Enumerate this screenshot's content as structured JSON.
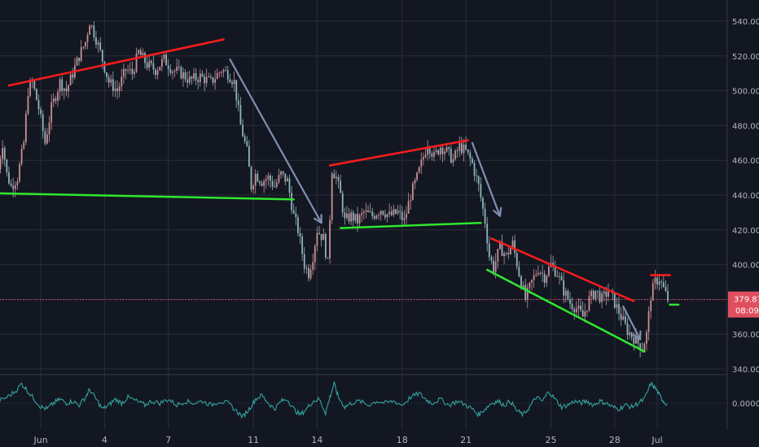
{
  "colors": {
    "background": "#131722",
    "grid": "#2a2e39",
    "axis_text": "#b2b5be",
    "candle_up": "#c98f96",
    "candle_down": "#8fb4b8",
    "resistance": "#ff1c1c",
    "support": "#2ee82e",
    "arrow": "#7f8fae",
    "price_line": "#e04f5f",
    "oscillator": "#33a3a0"
  },
  "chart_data": {
    "type": "candlestick",
    "y_axis": {
      "min": 336,
      "max": 546,
      "ticks": [
        340,
        360,
        380,
        400,
        420,
        440,
        460,
        480,
        500,
        520,
        540
      ],
      "tick_labels": [
        "340.00",
        "360.00",
        "380.00",
        "400.00",
        "420.00",
        "440.00",
        "460.00",
        "480.00",
        "500.00",
        "520.00",
        "540.00"
      ]
    },
    "x_axis": {
      "min_day": 0,
      "max_day": 30,
      "ticks": [
        {
          "day": 1,
          "label": "Jun"
        },
        {
          "day": 4,
          "label": "4"
        },
        {
          "day": 7,
          "label": "7"
        },
        {
          "day": 11,
          "label": "11"
        },
        {
          "day": 14,
          "label": "14"
        },
        {
          "day": 18,
          "label": "18"
        },
        {
          "day": 21,
          "label": "21"
        },
        {
          "day": 25,
          "label": "25"
        },
        {
          "day": 28,
          "label": "28"
        },
        {
          "day": 30,
          "label": "Jul"
        }
      ]
    },
    "price_path": [
      [
        -1.0,
        455
      ],
      [
        -0.8,
        470
      ],
      [
        -0.6,
        452
      ],
      [
        -0.4,
        445
      ],
      [
        -0.1,
        450
      ],
      [
        0.2,
        470
      ],
      [
        0.4,
        500
      ],
      [
        0.6,
        505
      ],
      [
        0.9,
        490
      ],
      [
        1.2,
        470
      ],
      [
        1.5,
        490
      ],
      [
        1.9,
        505
      ],
      [
        2.2,
        500
      ],
      [
        2.5,
        510
      ],
      [
        2.8,
        520
      ],
      [
        3.1,
        528
      ],
      [
        3.3,
        540
      ],
      [
        3.6,
        530
      ],
      [
        3.8,
        522
      ],
      [
        4.2,
        505
      ],
      [
        4.6,
        500
      ],
      [
        5.0,
        512
      ],
      [
        5.3,
        510
      ],
      [
        5.6,
        522
      ],
      [
        6.0,
        515
      ],
      [
        6.4,
        512
      ],
      [
        6.8,
        518
      ],
      [
        7.2,
        512
      ],
      [
        7.6,
        510
      ],
      [
        8.0,
        506
      ],
      [
        8.5,
        508
      ],
      [
        9.0,
        505
      ],
      [
        9.5,
        512
      ],
      [
        9.8,
        510
      ],
      [
        10.1,
        505
      ],
      [
        10.4,
        480
      ],
      [
        10.7,
        465
      ],
      [
        10.9,
        445
      ],
      [
        11.1,
        452
      ],
      [
        11.4,
        448
      ],
      [
        11.7,
        450
      ],
      [
        12.0,
        445
      ],
      [
        12.3,
        452
      ],
      [
        12.6,
        448
      ],
      [
        12.9,
        428
      ],
      [
        13.1,
        420
      ],
      [
        13.4,
        400
      ],
      [
        13.6,
        395
      ],
      [
        13.8,
        405
      ],
      [
        14.0,
        420
      ],
      [
        14.3,
        415
      ],
      [
        14.5,
        400
      ],
      [
        14.7,
        455
      ],
      [
        14.9,
        450
      ],
      [
        15.1,
        440
      ],
      [
        15.3,
        425
      ],
      [
        15.6,
        428
      ],
      [
        15.9,
        425
      ],
      [
        16.2,
        430
      ],
      [
        16.6,
        428
      ],
      [
        17.0,
        432
      ],
      [
        17.4,
        428
      ],
      [
        17.8,
        430
      ],
      [
        18.1,
        425
      ],
      [
        18.4,
        440
      ],
      [
        18.7,
        450
      ],
      [
        19.0,
        462
      ],
      [
        19.2,
        470
      ],
      [
        19.5,
        462
      ],
      [
        19.8,
        468
      ],
      [
        20.1,
        465
      ],
      [
        20.4,
        460
      ],
      [
        20.7,
        468
      ],
      [
        21.0,
        465
      ],
      [
        21.3,
        458
      ],
      [
        21.6,
        445
      ],
      [
        21.9,
        425
      ],
      [
        22.1,
        405
      ],
      [
        22.3,
        398
      ],
      [
        22.6,
        410
      ],
      [
        22.9,
        405
      ],
      [
        23.2,
        412
      ],
      [
        23.5,
        395
      ],
      [
        23.8,
        380
      ],
      [
        24.1,
        390
      ],
      [
        24.4,
        398
      ],
      [
        24.7,
        393
      ],
      [
        25.0,
        400
      ],
      [
        25.3,
        395
      ],
      [
        25.6,
        385
      ],
      [
        25.9,
        378
      ],
      [
        26.2,
        375
      ],
      [
        26.5,
        370
      ],
      [
        26.8,
        380
      ],
      [
        27.1,
        385
      ],
      [
        27.4,
        380
      ],
      [
        27.7,
        385
      ],
      [
        28.0,
        378
      ],
      [
        28.3,
        370
      ],
      [
        28.6,
        362
      ],
      [
        28.9,
        358
      ],
      [
        29.1,
        355
      ],
      [
        29.3,
        352
      ],
      [
        29.5,
        360
      ],
      [
        29.7,
        382
      ],
      [
        29.9,
        390
      ],
      [
        30.1,
        392
      ],
      [
        30.3,
        386
      ],
      [
        30.5,
        379.87
      ]
    ],
    "trendlines": [
      {
        "kind": "resistance",
        "from": [
          -0.5,
          503
        ],
        "to": [
          9.6,
          529.5
        ]
      },
      {
        "kind": "support",
        "from": [
          -1.0,
          441
        ],
        "to": [
          12.9,
          437.5
        ]
      },
      {
        "kind": "resistance",
        "from": [
          14.6,
          457
        ],
        "to": [
          21.1,
          471.5
        ]
      },
      {
        "kind": "support",
        "from": [
          15.1,
          421
        ],
        "to": [
          21.7,
          424
        ]
      },
      {
        "kind": "resistance",
        "from": [
          22.2,
          415
        ],
        "to": [
          28.9,
          379
        ]
      },
      {
        "kind": "support",
        "from": [
          22.0,
          397
        ],
        "to": [
          29.4,
          350
        ]
      },
      {
        "kind": "resistance",
        "from": [
          29.7,
          394
        ],
        "to": [
          30.6,
          394
        ]
      },
      {
        "kind": "support",
        "from": [
          30.6,
          377
        ],
        "to": [
          31.0,
          377
        ]
      }
    ],
    "arrows": [
      {
        "from": [
          9.9,
          518
        ],
        "to": [
          14.2,
          424
        ]
      },
      {
        "from": [
          21.3,
          470
        ],
        "to": [
          22.6,
          428
        ]
      },
      {
        "from": [
          28.4,
          376
        ],
        "to": [
          29.2,
          357
        ]
      }
    ],
    "last_price": 379.87,
    "price_label": "379.87",
    "countdown_label": "08:09",
    "oscillator": {
      "zero_label": "0.0000",
      "values": [
        [
          -1.0,
          0.1
        ],
        [
          -0.6,
          0.3
        ],
        [
          -0.2,
          0.6
        ],
        [
          0.1,
          1.0
        ],
        [
          0.4,
          0.6
        ],
        [
          0.7,
          0.2
        ],
        [
          1.0,
          -0.2
        ],
        [
          1.3,
          -0.3
        ],
        [
          1.6,
          0.0
        ],
        [
          1.9,
          0.2
        ],
        [
          2.2,
          0.0
        ],
        [
          2.5,
          0.1
        ],
        [
          2.8,
          -0.1
        ],
        [
          3.1,
          0.3
        ],
        [
          3.3,
          0.7
        ],
        [
          3.6,
          0.2
        ],
        [
          3.9,
          -0.3
        ],
        [
          4.2,
          -0.1
        ],
        [
          4.5,
          0.2
        ],
        [
          4.8,
          0.0
        ],
        [
          5.1,
          0.3
        ],
        [
          5.5,
          0.1
        ],
        [
          5.9,
          -0.1
        ],
        [
          6.2,
          0.1
        ],
        [
          6.6,
          0.0
        ],
        [
          7.0,
          0.2
        ],
        [
          7.4,
          -0.1
        ],
        [
          7.8,
          0.1
        ],
        [
          8.2,
          0.0
        ],
        [
          8.6,
          0.1
        ],
        [
          9.0,
          -0.1
        ],
        [
          9.4,
          0.1
        ],
        [
          9.8,
          0.0
        ],
        [
          10.2,
          -0.4
        ],
        [
          10.5,
          -0.7
        ],
        [
          10.8,
          -0.3
        ],
        [
          11.1,
          0.2
        ],
        [
          11.4,
          0.4
        ],
        [
          11.7,
          0.0
        ],
        [
          12.0,
          -0.3
        ],
        [
          12.3,
          0.1
        ],
        [
          12.6,
          0.2
        ],
        [
          12.9,
          -0.3
        ],
        [
          13.2,
          -0.6
        ],
        [
          13.5,
          -0.3
        ],
        [
          13.8,
          0.1
        ],
        [
          14.1,
          0.2
        ],
        [
          14.4,
          -0.5
        ],
        [
          14.6,
          0.3
        ],
        [
          14.8,
          1.0
        ],
        [
          15.0,
          0.3
        ],
        [
          15.3,
          -0.2
        ],
        [
          15.6,
          0.0
        ],
        [
          16.0,
          0.1
        ],
        [
          16.4,
          -0.1
        ],
        [
          16.8,
          0.1
        ],
        [
          17.2,
          0.0
        ],
        [
          17.6,
          0.1
        ],
        [
          18.0,
          -0.1
        ],
        [
          18.4,
          0.3
        ],
        [
          18.8,
          0.5
        ],
        [
          19.1,
          0.2
        ],
        [
          19.4,
          0.0
        ],
        [
          19.8,
          0.2
        ],
        [
          20.2,
          -0.1
        ],
        [
          20.6,
          0.1
        ],
        [
          21.0,
          -0.1
        ],
        [
          21.3,
          -0.3
        ],
        [
          21.6,
          -0.6
        ],
        [
          21.9,
          -0.3
        ],
        [
          22.2,
          0.0
        ],
        [
          22.5,
          0.1
        ],
        [
          22.8,
          -0.1
        ],
        [
          23.1,
          0.1
        ],
        [
          23.4,
          -0.4
        ],
        [
          23.7,
          -0.6
        ],
        [
          24.0,
          -0.2
        ],
        [
          24.3,
          0.3
        ],
        [
          24.6,
          0.1
        ],
        [
          24.9,
          0.6
        ],
        [
          25.2,
          0.2
        ],
        [
          25.5,
          -0.2
        ],
        [
          25.8,
          -0.1
        ],
        [
          26.1,
          0.1
        ],
        [
          26.4,
          0.0
        ],
        [
          26.7,
          0.1
        ],
        [
          27.0,
          -0.1
        ],
        [
          27.3,
          0.1
        ],
        [
          27.6,
          0.0
        ],
        [
          27.9,
          -0.2
        ],
        [
          28.2,
          -0.3
        ],
        [
          28.5,
          -0.1
        ],
        [
          28.8,
          -0.2
        ],
        [
          29.1,
          0.0
        ],
        [
          29.4,
          0.2
        ],
        [
          29.7,
          1.0
        ],
        [
          29.9,
          0.8
        ],
        [
          30.1,
          0.4
        ],
        [
          30.3,
          0.1
        ],
        [
          30.5,
          -0.1
        ]
      ]
    }
  }
}
